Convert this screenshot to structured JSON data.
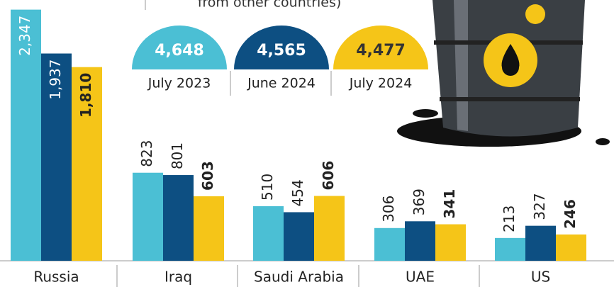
{
  "chart_data": {
    "type": "bar",
    "subtitle": "from other countries)",
    "categories": [
      "Russia",
      "Iraq",
      "Saudi Arabia",
      "UAE",
      "US"
    ],
    "series": [
      {
        "name": "July 2023",
        "color": "#4bbfd4",
        "values": [
          2347,
          823,
          510,
          306,
          213
        ],
        "value_labels": [
          "2,347",
          "823",
          "510",
          "306",
          "213"
        ],
        "total": 4648,
        "total_label": "4,648"
      },
      {
        "name": "June 2024",
        "color": "#0d4f82",
        "values": [
          1937,
          801,
          454,
          369,
          327
        ],
        "value_labels": [
          "1,937",
          "801",
          "454",
          "369",
          "327"
        ],
        "total": 4565,
        "total_label": "4,565"
      },
      {
        "name": "July 2024",
        "color": "#f5c518",
        "values": [
          1810,
          603,
          606,
          341,
          246
        ],
        "value_labels": [
          "1,810",
          "603",
          "606",
          "341",
          "246"
        ],
        "total": 4477,
        "total_label": "4,477"
      }
    ]
  }
}
